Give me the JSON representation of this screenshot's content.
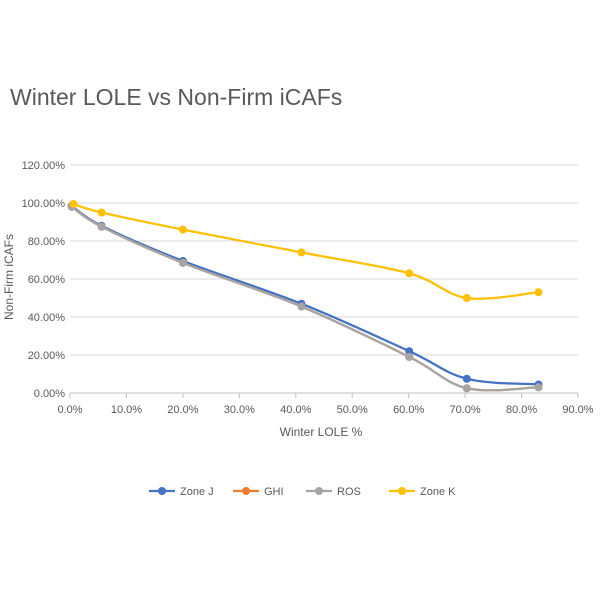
{
  "chart_data": {
    "type": "line",
    "title": "Winter LOLE vs Non-Firm iCAFs",
    "xlabel": "Winter LOLE %",
    "ylabel": "Non-Firm iCAFs",
    "xlim": [
      0,
      90
    ],
    "ylim": [
      0,
      120
    ],
    "x_ticks": [
      0,
      10,
      20,
      30,
      40,
      50,
      60,
      70,
      80,
      90
    ],
    "x_tick_labels": [
      "0.0%",
      "10.0%",
      "20.0%",
      "30.0%",
      "40.0%",
      "50.0%",
      "60.0%",
      "70.0%",
      "80.0%",
      "90.0%"
    ],
    "y_ticks": [
      0,
      20,
      40,
      60,
      80,
      100,
      120
    ],
    "y_tick_labels": [
      "0.00%",
      "20.00%",
      "40.00%",
      "60.00%",
      "80.00%",
      "100.00%",
      "120.00%"
    ],
    "grid": true,
    "legend_position": "bottom",
    "series": [
      {
        "name": "Zone J",
        "color": "#4472C4",
        "x": [
          0.3,
          5.6,
          20.0,
          41.0,
          60.1,
          70.3,
          83.0
        ],
        "y": [
          98.5,
          88.0,
          69.5,
          47.0,
          22.0,
          7.5,
          4.5
        ]
      },
      {
        "name": "GHI",
        "color": "#ED7D31",
        "x": [
          0.3,
          5.6,
          20.0,
          41.0,
          60.1,
          70.3,
          83.0
        ],
        "y": [
          98.0,
          87.5,
          68.5,
          45.5,
          19.0,
          2.5,
          3.0
        ]
      },
      {
        "name": "ROS",
        "color": "#A5A5A5",
        "x": [
          0.3,
          5.6,
          20.0,
          41.0,
          60.1,
          70.3,
          83.0
        ],
        "y": [
          98.0,
          87.5,
          68.5,
          45.5,
          19.0,
          2.5,
          3.0
        ]
      },
      {
        "name": "Zone K",
        "color": "#FFC000",
        "x": [
          0.6,
          5.6,
          20.0,
          41.0,
          60.1,
          70.3,
          83.0
        ],
        "y": [
          99.5,
          95.0,
          86.0,
          74.0,
          63.0,
          50.0,
          53.0
        ]
      }
    ]
  }
}
